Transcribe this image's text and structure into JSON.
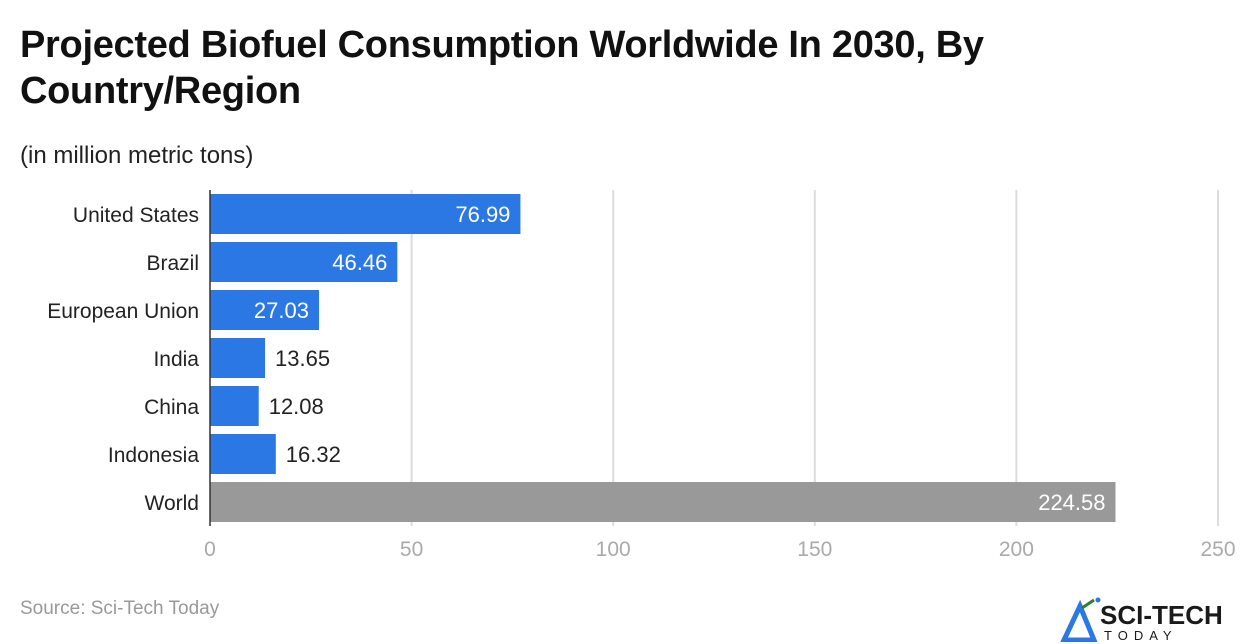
{
  "title": "Projected Biofuel Consumption Worldwide In 2030, By Country/Region",
  "subtitle": "(in million metric tons)",
  "source": "Source: Sci-Tech Today",
  "logo": {
    "text": "SCI-TECH",
    "subtext": "TODAY"
  },
  "colors": {
    "bar": "#2b78e4",
    "world_bar": "#999999",
    "grid": "#dddddd"
  },
  "chart_data": {
    "type": "bar",
    "orientation": "horizontal",
    "categories": [
      "United States",
      "Brazil",
      "European Union",
      "India",
      "China",
      "Indonesia",
      "World"
    ],
    "values": [
      76.99,
      46.46,
      27.03,
      13.65,
      12.08,
      16.32,
      224.58
    ],
    "labels": [
      "76.99",
      "46.46",
      "27.03",
      "13.65",
      "12.08",
      "16.32",
      "224.58"
    ],
    "xlim": [
      0,
      250
    ],
    "xticks": [
      "0",
      "50",
      "100",
      "150",
      "200",
      "250"
    ],
    "grid": true,
    "xlabel": "",
    "ylabel": ""
  }
}
